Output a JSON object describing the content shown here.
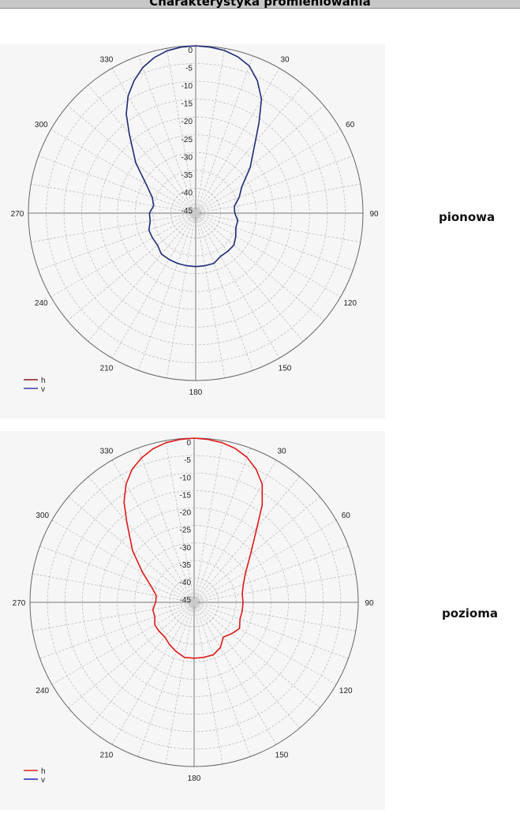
{
  "page": {
    "title": "Charakterystyka promieniowania"
  },
  "chart_data": [
    {
      "type": "polar-line",
      "side_label": "pionowa",
      "radial_ticks": [
        "0",
        "-5",
        "-10",
        "-15",
        "-20",
        "-25",
        "-30",
        "-35",
        "-40",
        "-45"
      ],
      "angle_ticks": [
        "0",
        "30",
        "60",
        "90",
        "120",
        "150",
        "180",
        "210",
        "240",
        "270",
        "300",
        "330"
      ],
      "r_range_db": [
        -47,
        0
      ],
      "legend": [
        {
          "label": "h",
          "color": "#8b1a1a"
        },
        {
          "label": "v",
          "color": "#3b3bb0"
        }
      ],
      "series": [
        {
          "name": "v",
          "color": "#1f2a78",
          "points": [
            {
              "deg": 0,
              "db": 0
            },
            {
              "deg": 5,
              "db": -0.2
            },
            {
              "deg": 10,
              "db": -0.6
            },
            {
              "deg": 15,
              "db": -1.5
            },
            {
              "deg": 20,
              "db": -3
            },
            {
              "deg": 25,
              "db": -6
            },
            {
              "deg": 30,
              "db": -10
            },
            {
              "deg": 35,
              "db": -16
            },
            {
              "deg": 40,
              "db": -21
            },
            {
              "deg": 50,
              "db": -27
            },
            {
              "deg": 60,
              "db": -32
            },
            {
              "deg": 70,
              "db": -34
            },
            {
              "deg": 80,
              "db": -36
            },
            {
              "deg": 90,
              "db": -36
            },
            {
              "deg": 100,
              "db": -35
            },
            {
              "deg": 110,
              "db": -35
            },
            {
              "deg": 120,
              "db": -34
            },
            {
              "deg": 130,
              "db": -33
            },
            {
              "deg": 140,
              "db": -33
            },
            {
              "deg": 150,
              "db": -33
            },
            {
              "deg": 160,
              "db": -32
            },
            {
              "deg": 170,
              "db": -32
            },
            {
              "deg": 180,
              "db": -32
            },
            {
              "deg": 190,
              "db": -32
            },
            {
              "deg": 200,
              "db": -32
            },
            {
              "deg": 210,
              "db": -32
            },
            {
              "deg": 220,
              "db": -32
            },
            {
              "deg": 230,
              "db": -33
            },
            {
              "deg": 240,
              "db": -33
            },
            {
              "deg": 250,
              "db": -33
            },
            {
              "deg": 260,
              "db": -34
            },
            {
              "deg": 270,
              "db": -34
            },
            {
              "deg": 280,
              "db": -35
            },
            {
              "deg": 290,
              "db": -34
            },
            {
              "deg": 300,
              "db": -31
            },
            {
              "deg": 310,
              "db": -25
            },
            {
              "deg": 320,
              "db": -18
            },
            {
              "deg": 325,
              "db": -13
            },
            {
              "deg": 330,
              "db": -9
            },
            {
              "deg": 335,
              "db": -6
            },
            {
              "deg": 340,
              "db": -3.5
            },
            {
              "deg": 345,
              "db": -1.8
            },
            {
              "deg": 350,
              "db": -0.7
            },
            {
              "deg": 355,
              "db": -0.2
            }
          ]
        }
      ]
    },
    {
      "type": "polar-line",
      "side_label": "pozioma",
      "radial_ticks": [
        "0",
        "-5",
        "-10",
        "-15",
        "-20",
        "-25",
        "-30",
        "-35",
        "-40",
        "-45"
      ],
      "angle_ticks": [
        "0",
        "30",
        "60",
        "90",
        "120",
        "150",
        "180",
        "210",
        "240",
        "270",
        "300",
        "330"
      ],
      "r_range_db": [
        -47,
        0
      ],
      "legend": [
        {
          "label": "h",
          "color": "#e02020"
        },
        {
          "label": "v",
          "color": "#2020c0"
        }
      ],
      "series": [
        {
          "name": "h",
          "color": "#e01818",
          "points": [
            {
              "deg": 0,
              "db": 0
            },
            {
              "deg": 5,
              "db": -0.2
            },
            {
              "deg": 10,
              "db": -0.6
            },
            {
              "deg": 15,
              "db": -1.4
            },
            {
              "deg": 20,
              "db": -2.8
            },
            {
              "deg": 25,
              "db": -5
            },
            {
              "deg": 30,
              "db": -8
            },
            {
              "deg": 35,
              "db": -13
            },
            {
              "deg": 40,
              "db": -19
            },
            {
              "deg": 50,
              "db": -26
            },
            {
              "deg": 60,
              "db": -30
            },
            {
              "deg": 70,
              "db": -32
            },
            {
              "deg": 80,
              "db": -33
            },
            {
              "deg": 90,
              "db": -33
            },
            {
              "deg": 100,
              "db": -33
            },
            {
              "deg": 110,
              "db": -33
            },
            {
              "deg": 120,
              "db": -32
            },
            {
              "deg": 130,
              "db": -33
            },
            {
              "deg": 140,
              "db": -34
            },
            {
              "deg": 150,
              "db": -32
            },
            {
              "deg": 160,
              "db": -31
            },
            {
              "deg": 170,
              "db": -31
            },
            {
              "deg": 180,
              "db": -31
            },
            {
              "deg": 190,
              "db": -31
            },
            {
              "deg": 200,
              "db": -32
            },
            {
              "deg": 210,
              "db": -33
            },
            {
              "deg": 220,
              "db": -34
            },
            {
              "deg": 230,
              "db": -34
            },
            {
              "deg": 240,
              "db": -34
            },
            {
              "deg": 250,
              "db": -35
            },
            {
              "deg": 260,
              "db": -35
            },
            {
              "deg": 270,
              "db": -36
            },
            {
              "deg": 280,
              "db": -36
            },
            {
              "deg": 290,
              "db": -34
            },
            {
              "deg": 300,
              "db": -30
            },
            {
              "deg": 310,
              "db": -24
            },
            {
              "deg": 320,
              "db": -17
            },
            {
              "deg": 325,
              "db": -12
            },
            {
              "deg": 330,
              "db": -8
            },
            {
              "deg": 335,
              "db": -5
            },
            {
              "deg": 340,
              "db": -3
            },
            {
              "deg": 345,
              "db": -1.5
            },
            {
              "deg": 350,
              "db": -0.6
            },
            {
              "deg": 355,
              "db": -0.2
            }
          ]
        }
      ]
    }
  ]
}
